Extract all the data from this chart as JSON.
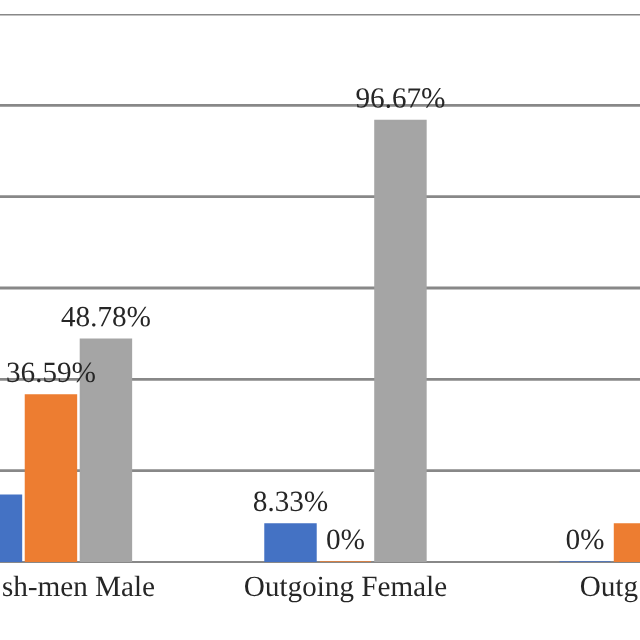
{
  "chart_data": {
    "type": "bar",
    "categories": [
      "sh-men Male",
      "Outgoing Female",
      "Outg"
    ],
    "series": [
      {
        "color": "#4472c4",
        "values": [
          14.63,
          8.33,
          0
        ],
        "value_labels": [
          null,
          "8.33%",
          "0%"
        ]
      },
      {
        "color": "#ed7d31",
        "values": [
          36.59,
          0,
          8.33
        ],
        "value_labels": [
          "36.59%",
          "0%",
          null
        ]
      },
      {
        "color": "#a5a5a5",
        "values": [
          48.78,
          96.67,
          null
        ],
        "value_labels": [
          "48.78%",
          "96.67%",
          null
        ]
      }
    ],
    "ylim": [
      0,
      120
    ],
    "yticks": [
      {
        "value": 20,
        "label": null
      },
      {
        "value": 40,
        "label": null
      },
      {
        "value": 60,
        "label": null
      },
      {
        "value": 80,
        "label": null
      },
      {
        "value": 100,
        "label": null
      },
      {
        "value": 120,
        "label": null
      }
    ],
    "grid": "y",
    "tick_labels": "x",
    "legend": false
  }
}
